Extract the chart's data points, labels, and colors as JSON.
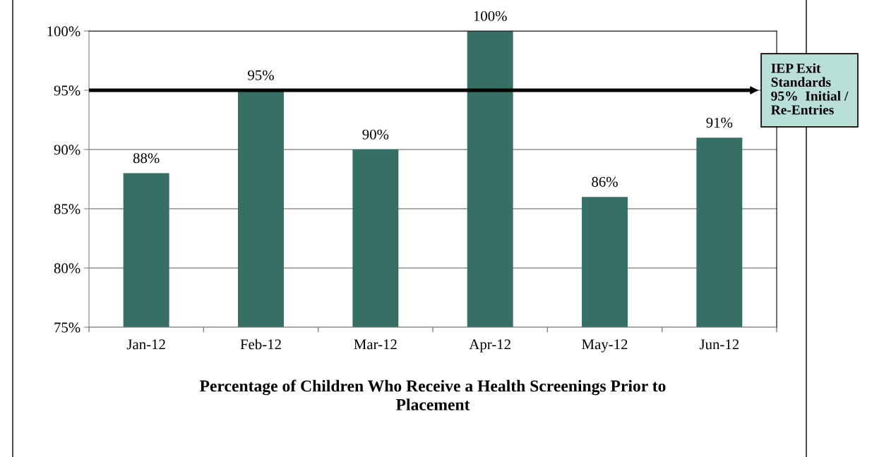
{
  "chart_data": {
    "type": "bar",
    "xlabel": "Percentage of Children Who Receive a Health Screenings Prior to\nPlacement",
    "categories": [
      "Jan-12",
      "Feb-12",
      "Mar-12",
      "Apr-12",
      "May-12",
      "Jun-12"
    ],
    "values": [
      88,
      95,
      90,
      100,
      86,
      91
    ],
    "value_labels": [
      "88%",
      "95%",
      "90%",
      "100%",
      "86%",
      "91%"
    ],
    "color": "#367064",
    "ylim": [
      75,
      100
    ],
    "yticks": [
      {
        "value": 75,
        "label": "75%"
      },
      {
        "value": 80,
        "label": "80%"
      },
      {
        "value": 85,
        "label": "85%"
      },
      {
        "value": 90,
        "label": "90%"
      },
      {
        "value": 95,
        "label": "95%"
      },
      {
        "value": 100,
        "label": "100%"
      }
    ],
    "grid": "y",
    "ref_lines": [
      {
        "axis": "y",
        "value": 95,
        "label": "IEP Exit\nStandards\n95%  Initial /\nRe-Entries",
        "color": "#000000"
      }
    ]
  }
}
